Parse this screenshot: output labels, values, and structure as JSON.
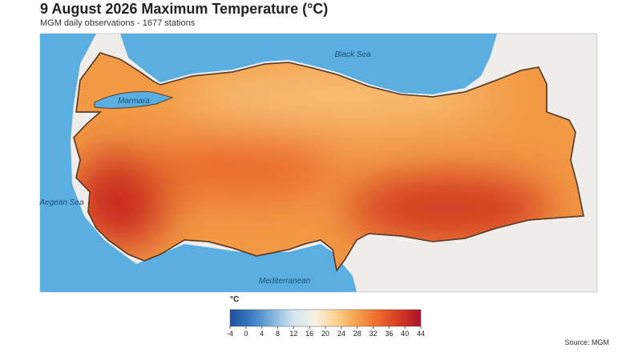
{
  "header": {
    "title": "9 August 2026 Maximum Temperature (°C)",
    "subtitle": "MGM daily observations - 1677 stations"
  },
  "map": {
    "labels": [
      "Black Sea",
      "Marmara",
      "Aegean Sea",
      "Mediterranean"
    ]
  },
  "colorbar": {
    "label": "°C",
    "range": [
      -4,
      44
    ],
    "ticks": [
      -4,
      0,
      4,
      8,
      12,
      16,
      20,
      24,
      28,
      32,
      36,
      40,
      44
    ],
    "colors": [
      "#1f4e9c",
      "#3a7cc2",
      "#7fb3dc",
      "#d3e6f1",
      "#f8f1e4",
      "#fbd28e",
      "#f6a04d",
      "#ec6a2c",
      "#d33a22",
      "#a8122a"
    ]
  },
  "source": "Source: MGM"
}
